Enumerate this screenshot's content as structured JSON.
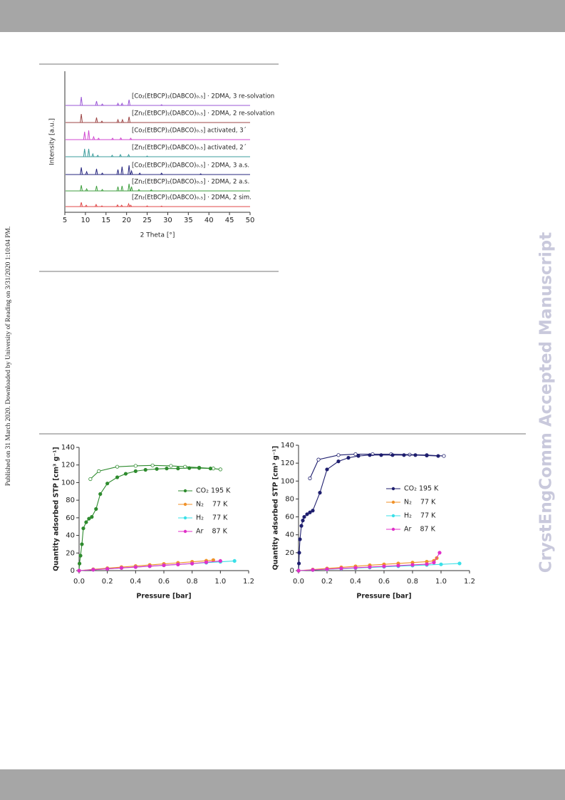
{
  "sidebar_text": "Published on 31 March 2020. Downloaded by University of Reading on 3/31/2020 1:10:04 PM.",
  "watermark": "CrystEngComm Accepted Manuscript",
  "chart_data": [
    {
      "type": "line",
      "xlabel": "2 Theta [°]",
      "ylabel": "Intensity [a.u.]",
      "xlim": [
        5,
        50
      ],
      "xticks": [
        5,
        10,
        15,
        20,
        25,
        30,
        35,
        40,
        45,
        50
      ],
      "series": [
        {
          "name": "[Zn₂(EtBCP)₂(DABCO)₀.₅] · 2DMA, 2 sim.",
          "color": "#e04848",
          "x": [
            9.0,
            10.2,
            12.6,
            14.0,
            17.8,
            18.8,
            20.5,
            21.0,
            25.0,
            28.5
          ],
          "values": [
            0.3,
            0.1,
            0.15,
            0.05,
            0.12,
            0.1,
            0.2,
            0.1,
            0.05,
            0.04
          ]
        },
        {
          "name": "[Zn₂(EtBCP)₂(DABCO)₀.₅] · 2DMA, 2 a.s.",
          "color": "#3f9f3f",
          "x": [
            9.0,
            10.3,
            12.7,
            14.1,
            17.9,
            18.9,
            20.6,
            21.2,
            23.0,
            26.0
          ],
          "values": [
            0.4,
            0.15,
            0.35,
            0.1,
            0.3,
            0.35,
            0.5,
            0.3,
            0.1,
            0.08
          ]
        },
        {
          "name": "[Co₂(EtBCP)₂(DABCO)₀.₅] · 2DMA, 3 a.s.",
          "color": "#25257e",
          "x": [
            9.0,
            10.3,
            12.7,
            14.1,
            17.9,
            18.9,
            20.6,
            21.2,
            23.2,
            28.5,
            38.0
          ],
          "values": [
            0.5,
            0.2,
            0.4,
            0.1,
            0.35,
            0.55,
            0.65,
            0.25,
            0.1,
            0.1,
            0.05
          ]
        },
        {
          "name": "[Zn₂(EtBCP)₂(DABCO)₀.₅] activated, 2´",
          "color": "#3c9c9c",
          "x": [
            9.8,
            10.8,
            11.8,
            13.0,
            16.5,
            18.5,
            20.5,
            25.0
          ],
          "values": [
            0.55,
            0.55,
            0.2,
            0.1,
            0.1,
            0.15,
            0.15,
            0.05
          ]
        },
        {
          "name": "[Co₂(EtBCP)₂(DABCO)₀.₅] activated, 3´",
          "color": "#d048d0",
          "x": [
            9.8,
            10.8,
            12.0,
            13.2,
            16.6,
            18.6,
            21.0
          ],
          "values": [
            0.55,
            0.65,
            0.2,
            0.1,
            0.1,
            0.12,
            0.1
          ]
        },
        {
          "name": "[Zn₂(EtBCP)₂(DABCO)₀.₅] · 2DMA, 2 re-solvation",
          "color": "#9c4444",
          "x": [
            9.0,
            12.7,
            14.0,
            17.9,
            19.0,
            20.6
          ],
          "values": [
            0.6,
            0.35,
            0.1,
            0.2,
            0.2,
            0.4
          ]
        },
        {
          "name": "[Co₂(EtBCP)₂(DABCO)₀.₅] · 2DMA, 3 re-solvation",
          "color": "#9a55d6",
          "x": [
            9.0,
            12.7,
            14.1,
            17.9,
            18.9,
            20.6,
            28.5
          ],
          "values": [
            0.6,
            0.3,
            0.1,
            0.15,
            0.15,
            0.4,
            0.05
          ]
        }
      ]
    },
    {
      "type": "scatter",
      "xlabel": "Pressure [bar]",
      "ylabel": "Quantity adsorbed STP [cm³ g⁻¹]",
      "xlim": [
        0,
        1.2
      ],
      "xticks": [
        {
          "value": 0,
          "label": "0.0"
        },
        {
          "value": 0.2,
          "label": "0.2"
        },
        {
          "value": 0.4,
          "label": "0.4"
        },
        {
          "value": 0.6,
          "label": "0.6"
        },
        {
          "value": 0.8,
          "label": "0.8"
        },
        {
          "value": 1.0,
          "label": "1.0"
        },
        {
          "value": 1.2,
          "label": "1.2"
        }
      ],
      "ylim": [
        0,
        140
      ],
      "yticks": [
        0,
        20,
        40,
        60,
        80,
        100,
        120,
        140
      ],
      "series": [
        {
          "name": "CO₂ 195 K",
          "color": "#2e8b2e",
          "x": [
            0,
            0.003,
            0.01,
            0.02,
            0.03,
            0.05,
            0.07,
            0.09,
            0.12,
            0.15,
            0.2,
            0.27,
            0.33,
            0.4,
            0.47,
            0.55,
            0.62,
            0.7,
            0.78,
            0.85,
            0.93
          ],
          "values": [
            0,
            8,
            17,
            30,
            48,
            55,
            59,
            61,
            70,
            87,
            99,
            106,
            110,
            113,
            114.5,
            115.5,
            116,
            116,
            116.5,
            116.5,
            116
          ],
          "desorption_x": [
            1.0,
            0.95,
            0.85,
            0.75,
            0.65,
            0.52,
            0.4,
            0.27,
            0.14,
            0.08
          ],
          "desorption_values": [
            115,
            116,
            117,
            118,
            119,
            119.5,
            119,
            118,
            113,
            104
          ]
        },
        {
          "name": "N₂    77 K",
          "color": "#f0922a",
          "x": [
            0,
            0.1,
            0.2,
            0.3,
            0.4,
            0.5,
            0.6,
            0.7,
            0.8,
            0.9,
            0.95
          ],
          "values": [
            0,
            1.5,
            2.8,
            4,
            5.2,
            6.4,
            7.6,
            8.8,
            10,
            11.2,
            12
          ]
        },
        {
          "name": "H₂    77 K",
          "color": "#3ae0e8",
          "x": [
            0,
            0.1,
            0.2,
            0.3,
            0.4,
            0.5,
            0.6,
            0.7,
            0.8,
            0.9,
            1.0,
            1.1
          ],
          "values": [
            0,
            1,
            2,
            3,
            4,
            5,
            6,
            7,
            8,
            9,
            10,
            11
          ]
        },
        {
          "name": "Ar    87 K",
          "color": "#e030c8",
          "x": [
            0,
            0.1,
            0.2,
            0.3,
            0.4,
            0.5,
            0.6,
            0.7,
            0.8,
            0.9,
            1.0
          ],
          "values": [
            0,
            1,
            2,
            3,
            4,
            5,
            6,
            7,
            8,
            9.5,
            11
          ]
        }
      ]
    },
    {
      "type": "scatter",
      "xlabel": "Pressure [bar]",
      "ylabel": "Quantity adsorbed STP [cm³ g⁻¹]",
      "xlim": [
        0,
        1.2
      ],
      "xticks": [
        {
          "value": 0,
          "label": "0.0"
        },
        {
          "value": 0.2,
          "label": "0.2"
        },
        {
          "value": 0.4,
          "label": "0.4"
        },
        {
          "value": 0.6,
          "label": "0.6"
        },
        {
          "value": 0.8,
          "label": "0.8"
        },
        {
          "value": 1.0,
          "label": "1.0"
        },
        {
          "value": 1.2,
          "label": "1.2"
        }
      ],
      "ylim": [
        0,
        140
      ],
      "yticks": [
        0,
        20,
        40,
        60,
        80,
        100,
        120,
        140
      ],
      "series": [
        {
          "name": "CO₂ 195 K",
          "color": "#1e1e6e",
          "x": [
            0,
            0.003,
            0.005,
            0.01,
            0.02,
            0.03,
            0.04,
            0.06,
            0.08,
            0.1,
            0.15,
            0.2,
            0.28,
            0.35,
            0.42,
            0.5,
            0.58,
            0.66,
            0.74,
            0.82,
            0.9,
            0.98
          ],
          "values": [
            0,
            8,
            20,
            35,
            50,
            56,
            60,
            63,
            65,
            67,
            87,
            113,
            122,
            126,
            128,
            129,
            129,
            129,
            129,
            129,
            128.5,
            128
          ],
          "desorption_x": [
            1.02,
            0.9,
            0.78,
            0.65,
            0.52,
            0.4,
            0.28,
            0.14,
            0.08
          ],
          "desorption_values": [
            128,
            129,
            129.5,
            130,
            130,
            130,
            129,
            124,
            103
          ]
        },
        {
          "name": "N₂    77 K",
          "color": "#f0922a",
          "x": [
            0,
            0.1,
            0.2,
            0.3,
            0.4,
            0.5,
            0.6,
            0.7,
            0.8,
            0.9,
            0.95,
            0.97
          ],
          "values": [
            0,
            1.2,
            2.4,
            3.6,
            4.8,
            6,
            7,
            8,
            9,
            10,
            11,
            14
          ]
        },
        {
          "name": "H₂    77 K",
          "color": "#3ae0e8",
          "x": [
            0,
            0.1,
            0.2,
            0.3,
            0.4,
            0.5,
            0.6,
            0.7,
            0.8,
            0.9,
            1.0,
            1.13
          ],
          "values": [
            0,
            0.7,
            1.4,
            2.1,
            2.8,
            3.5,
            4.2,
            4.9,
            5.6,
            6.3,
            7,
            8
          ]
        },
        {
          "name": "Ar    87 K",
          "color": "#e030c8",
          "x": [
            0,
            0.1,
            0.2,
            0.3,
            0.4,
            0.5,
            0.6,
            0.7,
            0.8,
            0.9,
            0.95,
            0.99
          ],
          "values": [
            0,
            0.8,
            1.6,
            2.4,
            3.2,
            4,
            4.8,
            5.6,
            6.4,
            7.2,
            9,
            20
          ]
        }
      ]
    }
  ]
}
